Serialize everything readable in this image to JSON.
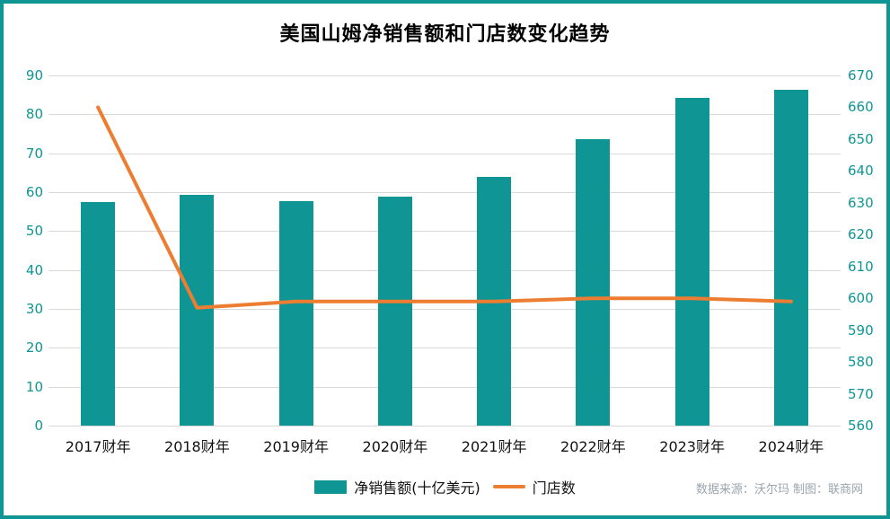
{
  "title": "美国山姆净销售额和门店数变化趋势",
  "source_note": "数据来源：沃尔玛  制图：联商网",
  "colors": {
    "bar": "#0E9594",
    "line": "#ED7D31",
    "axis_label": "#0E9594",
    "grid": "#d9d9d9",
    "border": "#0E9594"
  },
  "legend": [
    {
      "label": "净销售额(十亿美元)",
      "type": "bar"
    },
    {
      "label": "门店数",
      "type": "line"
    }
  ],
  "chart_data": {
    "type": "combo",
    "categories": [
      "2017财年",
      "2018财年",
      "2019财年",
      "2020财年",
      "2021财年",
      "2022财年",
      "2023财年",
      "2024财年"
    ],
    "series": [
      {
        "name": "净销售额(十亿美元)",
        "type": "bar",
        "axis": "left",
        "values": [
          57.4,
          59.2,
          57.8,
          58.8,
          63.9,
          73.6,
          84.3,
          86.2
        ]
      },
      {
        "name": "门店数",
        "type": "line",
        "axis": "right",
        "values": [
          660,
          597,
          599,
          599,
          599,
          600,
          600,
          599
        ]
      }
    ],
    "left_axis": {
      "min": 0,
      "max": 90,
      "step": 10,
      "label": ""
    },
    "right_axis": {
      "min": 560,
      "max": 670,
      "step": 10,
      "label": ""
    },
    "grid": true,
    "legend_position": "bottom",
    "title": "美国山姆净销售额和门店数变化趋势"
  }
}
